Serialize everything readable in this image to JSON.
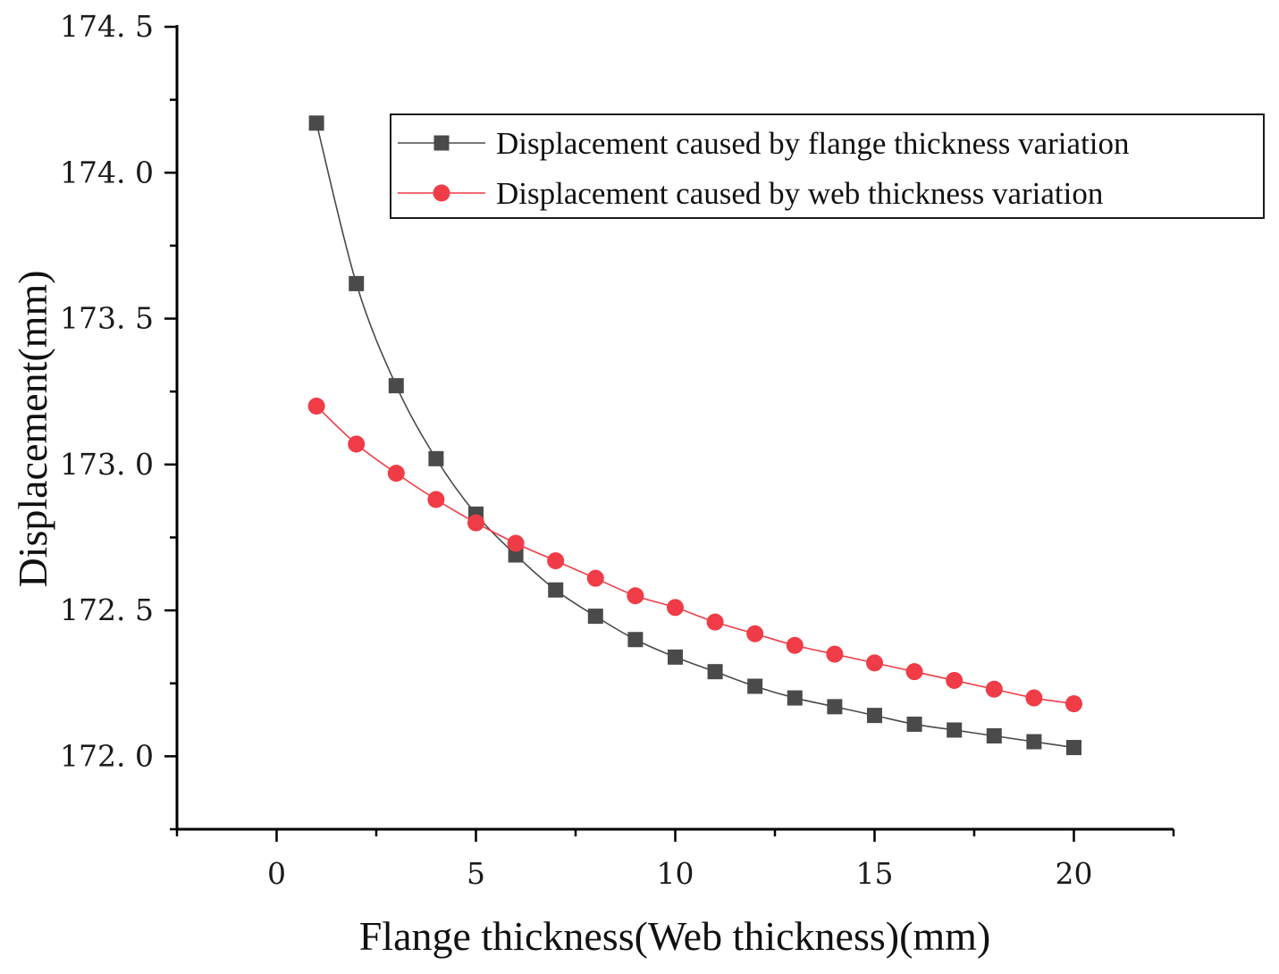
{
  "chart_data": {
    "type": "line",
    "title": "",
    "xlabel": "Flange thickness(Web thickness)(mm)",
    "ylabel": "Displacement(mm)",
    "xlim": [
      -2.5,
      22.5
    ],
    "ylim": [
      171.75,
      174.5
    ],
    "xticks": [
      0,
      5,
      10,
      15,
      20
    ],
    "xtick_labels": [
      "0",
      "5",
      "10",
      "15",
      "20"
    ],
    "yticks": [
      172.0,
      172.5,
      173.0,
      173.5,
      174.0,
      174.5
    ],
    "ytick_labels": [
      "172. 0",
      "172. 5",
      "173. 0",
      "173. 5",
      "174. 0",
      "174. 5"
    ],
    "grid": false,
    "legend_position": "top-right",
    "x": [
      1,
      2,
      3,
      4,
      5,
      6,
      7,
      8,
      9,
      10,
      11,
      12,
      13,
      14,
      15,
      16,
      17,
      18,
      19,
      20
    ],
    "series": [
      {
        "name": "Displacement caused by flange thickness variation",
        "color": "#4a4a4a",
        "marker": "square",
        "values": [
          174.17,
          173.62,
          173.27,
          173.02,
          172.83,
          172.69,
          172.57,
          172.48,
          172.4,
          172.34,
          172.29,
          172.24,
          172.2,
          172.17,
          172.14,
          172.11,
          172.09,
          172.07,
          172.05,
          172.03
        ]
      },
      {
        "name": "Displacement caused by web thickness variation",
        "color": "#f03c46",
        "marker": "circle",
        "values": [
          173.2,
          173.07,
          172.97,
          172.88,
          172.8,
          172.73,
          172.67,
          172.61,
          172.55,
          172.51,
          172.46,
          172.42,
          172.38,
          172.35,
          172.32,
          172.29,
          172.26,
          172.23,
          172.2,
          172.18
        ]
      }
    ]
  }
}
